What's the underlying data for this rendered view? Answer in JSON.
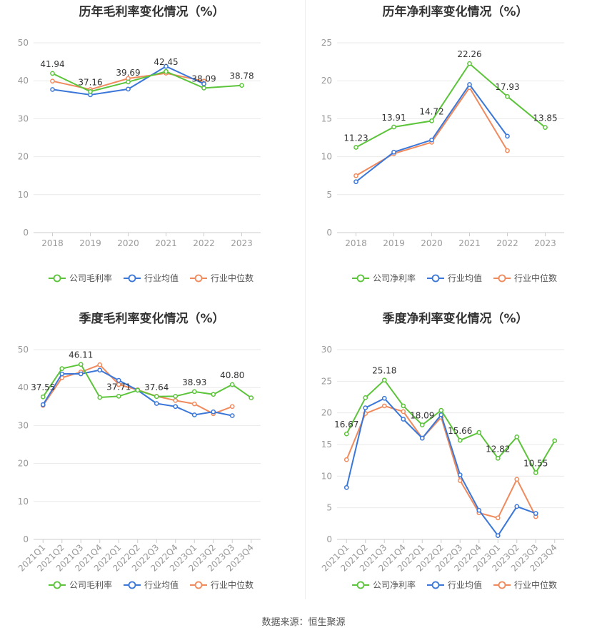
{
  "source": "数据来源：恒生聚源",
  "colors": {
    "company": "#5cc43a",
    "avg": "#3a77d8",
    "median": "#f08a5d"
  },
  "charts": [
    {
      "id": "annual-gross",
      "title": "历年毛利率变化情况（%）",
      "chart_data": {
        "type": "line",
        "categories": [
          "2018",
          "2019",
          "2020",
          "2021",
          "2022",
          "2023"
        ],
        "ylim": [
          0,
          50
        ],
        "yticks": [
          0,
          10,
          20,
          30,
          40,
          50
        ],
        "rotate_x": false,
        "series": [
          {
            "name": "公司毛利率",
            "key": "company",
            "values": [
              41.94,
              37.16,
              39.69,
              42.45,
              38.09,
              38.78
            ]
          },
          {
            "name": "行业均值",
            "key": "avg",
            "values": [
              37.7,
              36.3,
              37.8,
              43.8,
              39.2,
              null
            ]
          },
          {
            "name": "行业中位数",
            "key": "median",
            "values": [
              39.9,
              37.7,
              40.6,
              42.0,
              39.9,
              null
            ]
          }
        ],
        "labels": [
          {
            "index": 0,
            "text": "41.94"
          },
          {
            "index": 1,
            "text": "37.16"
          },
          {
            "index": 2,
            "text": "39.69"
          },
          {
            "index": 3,
            "text": "42.45"
          },
          {
            "index": 4,
            "text": "38.09"
          },
          {
            "index": 5,
            "text": "38.78"
          }
        ]
      }
    },
    {
      "id": "annual-net",
      "title": "历年净利率变化情况（%）",
      "chart_data": {
        "type": "line",
        "categories": [
          "2018",
          "2019",
          "2020",
          "2021",
          "2022",
          "2023"
        ],
        "ylim": [
          0,
          25
        ],
        "yticks": [
          0,
          5,
          10,
          15,
          20,
          25
        ],
        "rotate_x": false,
        "series": [
          {
            "name": "公司净利率",
            "key": "company",
            "values": [
              11.23,
              13.91,
              14.72,
              22.26,
              17.93,
              13.85
            ]
          },
          {
            "name": "行业均值",
            "key": "avg",
            "values": [
              6.7,
              10.6,
              12.2,
              19.5,
              12.7,
              null
            ]
          },
          {
            "name": "行业中位数",
            "key": "median",
            "values": [
              7.5,
              10.4,
              11.9,
              19.1,
              10.8,
              null
            ]
          }
        ],
        "labels": [
          {
            "index": 0,
            "text": "11.23"
          },
          {
            "index": 1,
            "text": "13.91"
          },
          {
            "index": 2,
            "text": "14.72"
          },
          {
            "index": 3,
            "text": "22.26"
          },
          {
            "index": 4,
            "text": "17.93"
          },
          {
            "index": 5,
            "text": "13.85"
          }
        ]
      }
    },
    {
      "id": "quarter-gross",
      "title": "季度毛利率变化情况（%）",
      "chart_data": {
        "type": "line",
        "categories": [
          "2021Q1",
          "2021Q2",
          "2021Q3",
          "2021Q4",
          "2022Q1",
          "2022Q2",
          "2022Q3",
          "2022Q4",
          "2023Q1",
          "2023Q2",
          "2023Q3",
          "2023Q4"
        ],
        "ylim": [
          0,
          50
        ],
        "yticks": [
          0,
          10,
          20,
          30,
          40,
          50
        ],
        "rotate_x": true,
        "series": [
          {
            "name": "公司毛利率",
            "key": "company",
            "values": [
              37.55,
              45.0,
              46.11,
              37.4,
              37.71,
              39.3,
              37.64,
              37.7,
              38.93,
              38.2,
              40.8,
              37.3
            ]
          },
          {
            "name": "行业均值",
            "key": "avg",
            "values": [
              35.5,
              43.6,
              43.6,
              44.6,
              41.9,
              39.3,
              35.8,
              35.0,
              32.8,
              33.6,
              32.6,
              null
            ]
          },
          {
            "name": "行业中位数",
            "key": "median",
            "values": [
              35.3,
              42.6,
              44.1,
              46.0,
              40.8,
              39.4,
              37.7,
              36.6,
              35.7,
              33.1,
              35.0,
              null
            ]
          }
        ],
        "labels": [
          {
            "index": 0,
            "text": "37.55"
          },
          {
            "index": 2,
            "text": "46.11"
          },
          {
            "index": 4,
            "text": "37.71"
          },
          {
            "index": 6,
            "text": "37.64"
          },
          {
            "index": 8,
            "text": "38.93"
          },
          {
            "index": 10,
            "text": "40.80"
          }
        ]
      }
    },
    {
      "id": "quarter-net",
      "title": "季度净利率变化情况（%）",
      "chart_data": {
        "type": "line",
        "categories": [
          "2021Q1",
          "2021Q2",
          "2021Q3",
          "2021Q4",
          "2022Q1",
          "2022Q2",
          "2022Q3",
          "2022Q4",
          "2023Q1",
          "2023Q2",
          "2023Q3",
          "2023Q4"
        ],
        "ylim": [
          0,
          30
        ],
        "yticks": [
          0,
          5,
          10,
          15,
          20,
          25,
          30
        ],
        "rotate_x": true,
        "series": [
          {
            "name": "公司净利率",
            "key": "company",
            "values": [
              16.67,
              22.4,
              25.18,
              21.1,
              18.09,
              20.4,
              15.66,
              16.9,
              12.82,
              16.2,
              10.55,
              15.6
            ]
          },
          {
            "name": "行业均值",
            "key": "avg",
            "values": [
              8.2,
              20.8,
              22.3,
              19.0,
              16.0,
              19.7,
              10.2,
              4.6,
              0.6,
              5.2,
              4.1,
              null
            ]
          },
          {
            "name": "行业中位数",
            "key": "median",
            "values": [
              12.6,
              19.9,
              21.1,
              20.2,
              16.0,
              19.3,
              9.3,
              4.2,
              3.4,
              9.5,
              3.6,
              null
            ]
          }
        ],
        "labels": [
          {
            "index": 0,
            "text": "16.67"
          },
          {
            "index": 2,
            "text": "25.18"
          },
          {
            "index": 4,
            "text": "18.09"
          },
          {
            "index": 6,
            "text": "15.66"
          },
          {
            "index": 8,
            "text": "12.82"
          },
          {
            "index": 10,
            "text": "10.55"
          }
        ]
      }
    }
  ]
}
